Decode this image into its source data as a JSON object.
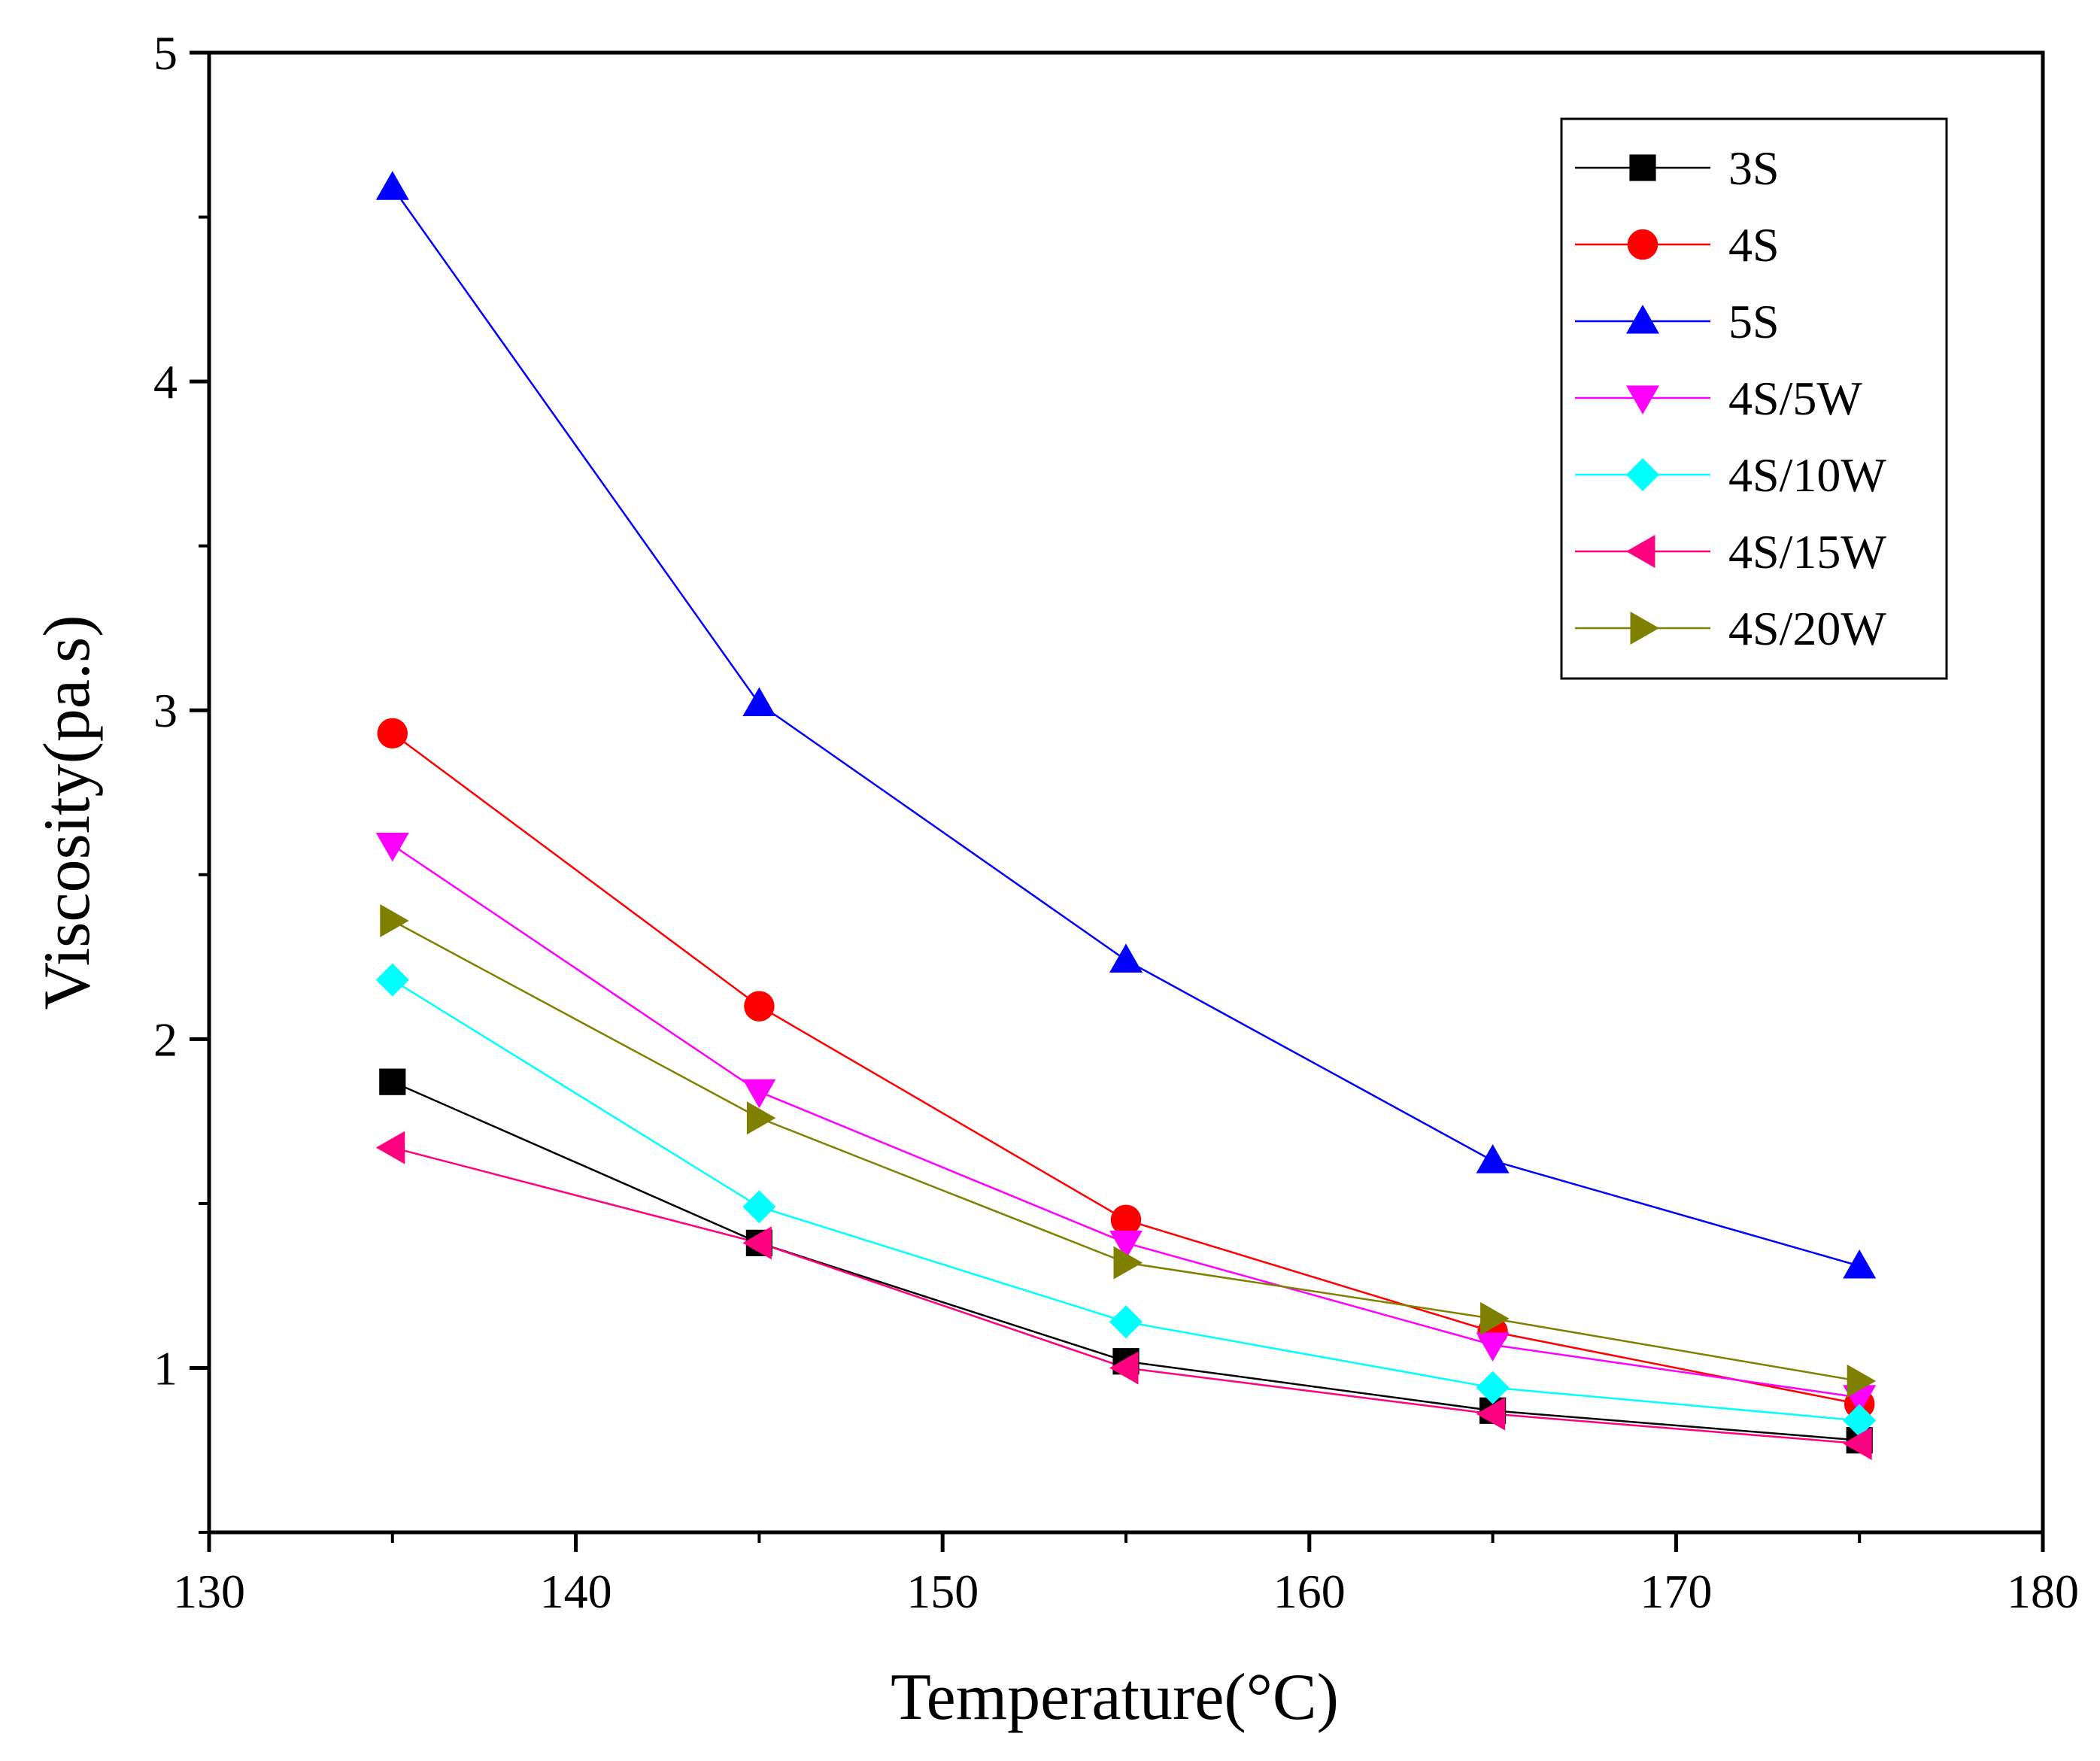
{
  "chart_data": {
    "type": "line",
    "title": "",
    "xlabel": "Temperature(°C)",
    "ylabel": "Viscosity(pa.s)",
    "xlim": [
      130,
      180
    ],
    "ylim": [
      0.5,
      5
    ],
    "xticks": [
      130,
      140,
      150,
      160,
      170,
      180
    ],
    "yticks": [
      1,
      2,
      3,
      4,
      5
    ],
    "x": [
      135,
      145,
      155,
      165,
      175
    ],
    "grid": false,
    "legend_position": "top-right",
    "series": [
      {
        "name": "3S",
        "color": "#000000",
        "marker": "square",
        "values": [
          1.87,
          1.38,
          1.02,
          0.87,
          0.78
        ]
      },
      {
        "name": "4S",
        "color": "#ff0000",
        "marker": "circle",
        "values": [
          2.93,
          2.1,
          1.45,
          1.11,
          0.89
        ]
      },
      {
        "name": "5S",
        "color": "#0000ff",
        "marker": "triangle-up",
        "values": [
          4.59,
          3.02,
          2.24,
          1.63,
          1.31
        ]
      },
      {
        "name": "4S/5W",
        "color": "#ff00ff",
        "marker": "triangle-down",
        "values": [
          2.59,
          1.84,
          1.38,
          1.07,
          0.91
        ]
      },
      {
        "name": "4S/10W",
        "color": "#00ffff",
        "marker": "diamond",
        "values": [
          2.18,
          1.49,
          1.14,
          0.94,
          0.84
        ]
      },
      {
        "name": "4S/15W",
        "color": "#ff0080",
        "marker": "triangle-left",
        "values": [
          1.67,
          1.38,
          1.0,
          0.86,
          0.77
        ]
      },
      {
        "name": "4S/20W",
        "color": "#808000",
        "marker": "triangle-right",
        "values": [
          2.36,
          1.76,
          1.32,
          1.15,
          0.96
        ]
      }
    ]
  }
}
